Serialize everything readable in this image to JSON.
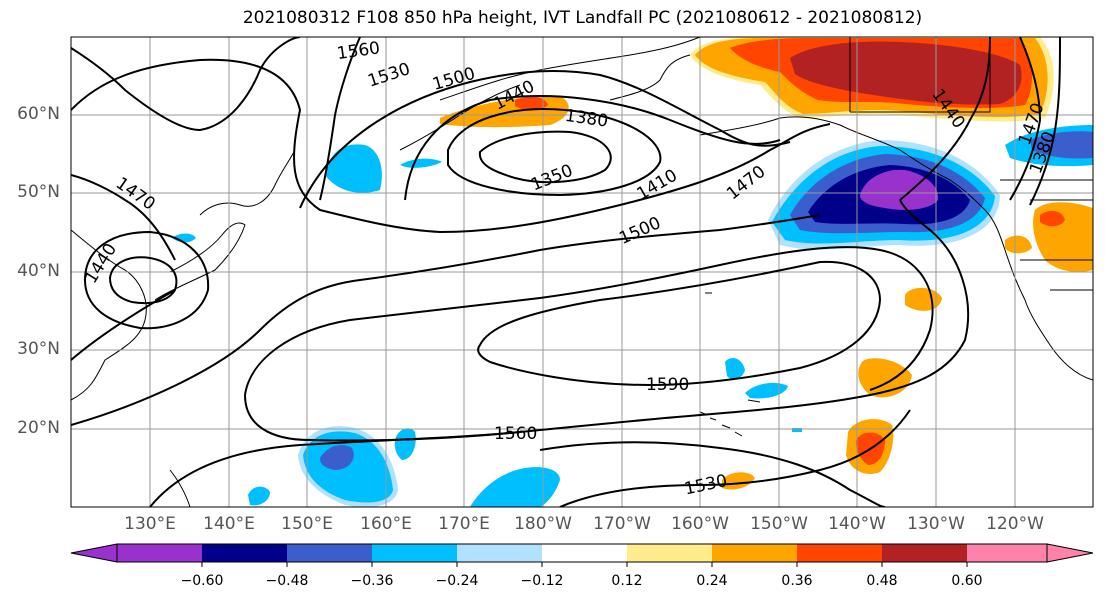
{
  "title": "2021080312 F108 850 hPa height, IVT Landfall PC (2021080612 - 2021080812)",
  "lat_labels": [
    "60°N",
    "50°N",
    "40°N",
    "30°N",
    "20°N"
  ],
  "lon_labels": [
    "130°E",
    "140°E",
    "150°E",
    "160°E",
    "170°E",
    "180°W",
    "170°W",
    "160°W",
    "150°W",
    "140°W",
    "130°W",
    "120°W"
  ],
  "contour_labels": [
    "1560",
    "1530",
    "1500",
    "1440",
    "1380",
    "1350",
    "1410",
    "1470",
    "1500",
    "1470",
    "1440",
    "1590",
    "1560",
    "1530",
    "1440",
    "1470",
    "1380"
  ],
  "colorbar": {
    "ticks": [
      "−0.60",
      "−0.48",
      "−0.36",
      "−0.24",
      "−0.12",
      "0.12",
      "0.24",
      "0.36",
      "0.48",
      "0.60"
    ],
    "colors": [
      "#9932cc",
      "#00008b",
      "#3a5fcd",
      "#00bfff",
      "#b0e2ff",
      "#ffffff",
      "#ffec8b",
      "#ffa500",
      "#ff4500",
      "#b22222",
      "#ff82ab"
    ]
  }
}
